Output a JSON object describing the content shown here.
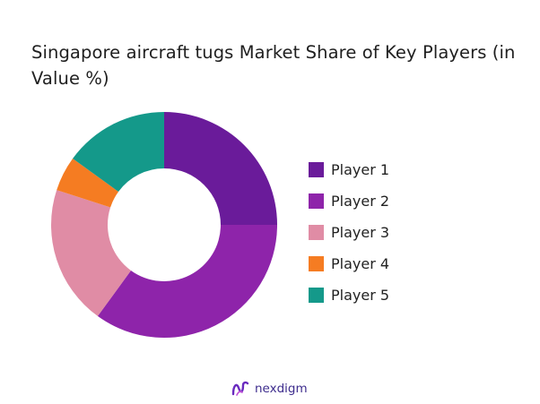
{
  "title": "Singapore aircraft tugs Market Share of Key Players (in Value %)",
  "brand": {
    "name": "nexdigm",
    "icon": "nexdigm-logo-icon"
  },
  "chart_data": {
    "type": "pie",
    "donut": true,
    "title": "Singapore aircraft tugs Market Share of Key Players (in Value %)",
    "legend_position": "right",
    "categories": [
      "Player 1",
      "Player 2",
      "Player 3",
      "Player 4",
      "Player 5"
    ],
    "values": [
      25,
      35,
      20,
      5,
      15
    ],
    "colors": [
      "#6a1b9a",
      "#8e24aa",
      "#e08ca5",
      "#f57c22",
      "#14998a"
    ],
    "unit": "%"
  }
}
